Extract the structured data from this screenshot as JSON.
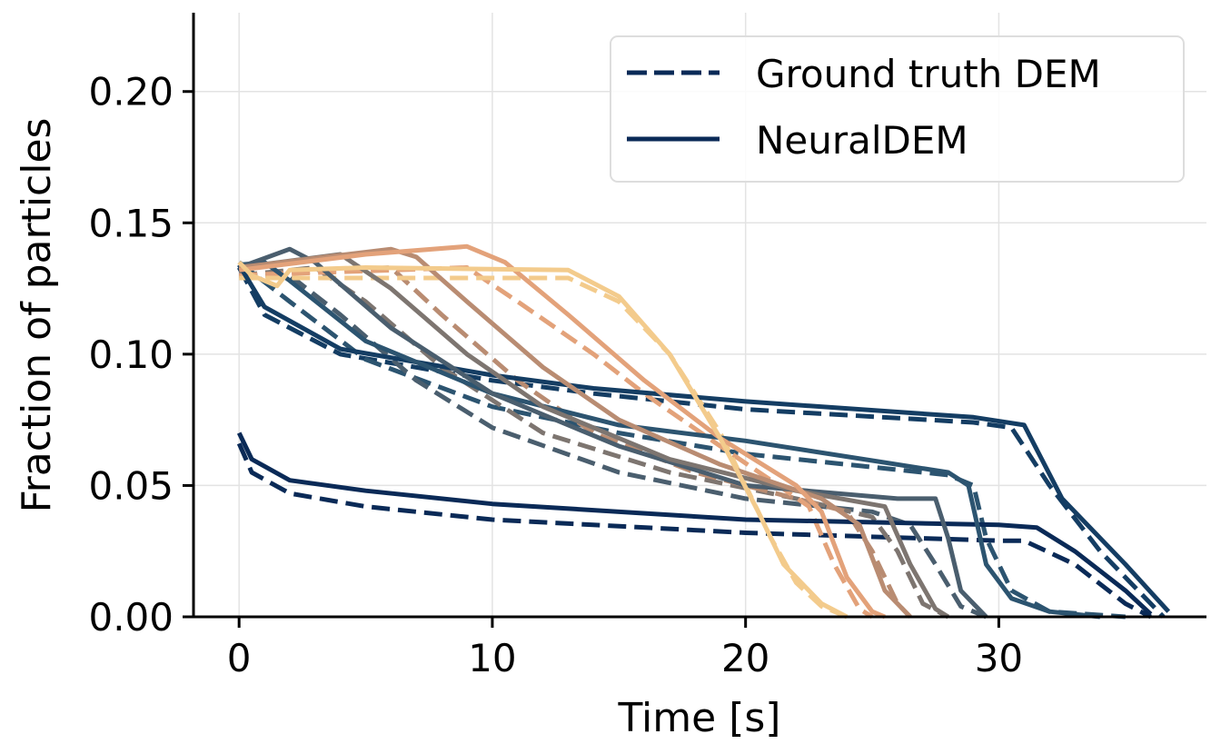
{
  "chart_data": {
    "type": "line",
    "title": "",
    "xlabel": "Time [s]",
    "ylabel": "Fraction of particles",
    "xlim": [
      -1.8,
      38.2
    ],
    "ylim": [
      0,
      0.23
    ],
    "xticks": [
      0,
      10,
      20,
      30
    ],
    "xtick_labels": [
      "0",
      "10",
      "20",
      "30"
    ],
    "yticks": [
      0,
      0.05,
      0.1,
      0.15,
      0.2
    ],
    "ytick_labels": [
      "0.00",
      "0.05",
      "0.10",
      "0.15",
      "0.20"
    ],
    "grid": true,
    "legend_placement": "top-right",
    "legend": [
      {
        "label": "Ground truth DEM",
        "style": "dashed",
        "color": "#0a2a57"
      },
      {
        "label": "NeuralDEM",
        "style": "solid",
        "color": "#0a2a57"
      }
    ],
    "series": [
      {
        "color": "#0a2a57",
        "ground_truth": [
          [
            0,
            0.066
          ],
          [
            0.5,
            0.055
          ],
          [
            2,
            0.047
          ],
          [
            5,
            0.042
          ],
          [
            10,
            0.037
          ],
          [
            20,
            0.032
          ],
          [
            30,
            0.029
          ],
          [
            31,
            0.029
          ],
          [
            33,
            0.02
          ],
          [
            35,
            0.005
          ],
          [
            36,
            0
          ]
        ],
        "neural": [
          [
            0,
            0.07
          ],
          [
            0.5,
            0.06
          ],
          [
            2,
            0.052
          ],
          [
            5,
            0.048
          ],
          [
            10,
            0.043
          ],
          [
            20,
            0.037
          ],
          [
            30,
            0.035
          ],
          [
            31.5,
            0.034
          ],
          [
            33,
            0.025
          ],
          [
            35,
            0.01
          ],
          [
            36,
            0.001
          ]
        ]
      },
      {
        "color": "#143d63",
        "ground_truth": [
          [
            0,
            0.133
          ],
          [
            1,
            0.115
          ],
          [
            4,
            0.1
          ],
          [
            10,
            0.09
          ],
          [
            14,
            0.085
          ],
          [
            20,
            0.079
          ],
          [
            29,
            0.074
          ],
          [
            30.5,
            0.072
          ],
          [
            32,
            0.05
          ],
          [
            34,
            0.025
          ],
          [
            36,
            0.005
          ],
          [
            36.5,
            0
          ]
        ],
        "neural": [
          [
            0,
            0.134
          ],
          [
            1,
            0.118
          ],
          [
            4,
            0.102
          ],
          [
            10,
            0.092
          ],
          [
            14,
            0.087
          ],
          [
            20,
            0.082
          ],
          [
            29,
            0.076
          ],
          [
            31,
            0.073
          ],
          [
            32.5,
            0.045
          ],
          [
            35,
            0.02
          ],
          [
            36.7,
            0.002
          ]
        ]
      },
      {
        "color": "#2c5470",
        "ground_truth": [
          [
            0,
            0.135
          ],
          [
            2,
            0.12
          ],
          [
            5,
            0.098
          ],
          [
            10,
            0.08
          ],
          [
            15,
            0.07
          ],
          [
            20,
            0.062
          ],
          [
            28,
            0.054
          ],
          [
            29,
            0.05
          ],
          [
            29.5,
            0.03
          ],
          [
            30.5,
            0.01
          ],
          [
            32,
            0.002
          ],
          [
            35,
            0
          ]
        ],
        "neural": [
          [
            0,
            0.134
          ],
          [
            1,
            0.135
          ],
          [
            2,
            0.128
          ],
          [
            5,
            0.105
          ],
          [
            10,
            0.085
          ],
          [
            15,
            0.073
          ],
          [
            20,
            0.067
          ],
          [
            28,
            0.055
          ],
          [
            28.8,
            0.05
          ],
          [
            29.5,
            0.02
          ],
          [
            30.5,
            0.007
          ],
          [
            32,
            0.002
          ],
          [
            34,
            0
          ]
        ]
      },
      {
        "color": "#4a5e6e",
        "ground_truth": [
          [
            0,
            0.13
          ],
          [
            2,
            0.13
          ],
          [
            4,
            0.115
          ],
          [
            7,
            0.09
          ],
          [
            10,
            0.072
          ],
          [
            15,
            0.055
          ],
          [
            20,
            0.045
          ],
          [
            25,
            0.04
          ],
          [
            26.5,
            0.035
          ],
          [
            27.5,
            0.02
          ],
          [
            28.5,
            0.004
          ],
          [
            29.5,
            0
          ]
        ],
        "neural": [
          [
            0,
            0.133
          ],
          [
            2,
            0.14
          ],
          [
            3,
            0.135
          ],
          [
            6,
            0.11
          ],
          [
            10,
            0.085
          ],
          [
            15,
            0.065
          ],
          [
            20,
            0.05
          ],
          [
            26,
            0.045
          ],
          [
            27.5,
            0.045
          ],
          [
            28,
            0.03
          ],
          [
            28.5,
            0.01
          ],
          [
            29.5,
            0
          ]
        ]
      },
      {
        "color": "#7d7570",
        "ground_truth": [
          [
            0,
            0.13
          ],
          [
            3,
            0.133
          ],
          [
            5,
            0.12
          ],
          [
            8,
            0.095
          ],
          [
            12,
            0.07
          ],
          [
            17,
            0.055
          ],
          [
            22,
            0.045
          ],
          [
            25,
            0.038
          ],
          [
            26,
            0.025
          ],
          [
            27,
            0.005
          ],
          [
            28,
            0
          ]
        ],
        "neural": [
          [
            0,
            0.133
          ],
          [
            4,
            0.138
          ],
          [
            6,
            0.125
          ],
          [
            9,
            0.1
          ],
          [
            12,
            0.08
          ],
          [
            17,
            0.06
          ],
          [
            22,
            0.048
          ],
          [
            25.5,
            0.042
          ],
          [
            26.5,
            0.02
          ],
          [
            27.5,
            0.003
          ],
          [
            28,
            0
          ]
        ]
      },
      {
        "color": "#b98c72",
        "ground_truth": [
          [
            0,
            0.13
          ],
          [
            6,
            0.133
          ],
          [
            8,
            0.115
          ],
          [
            11,
            0.09
          ],
          [
            14,
            0.07
          ],
          [
            18,
            0.055
          ],
          [
            22,
            0.045
          ],
          [
            24,
            0.04
          ],
          [
            25,
            0.025
          ],
          [
            26,
            0.005
          ],
          [
            26.5,
            0
          ]
        ],
        "neural": [
          [
            0,
            0.133
          ],
          [
            6,
            0.14
          ],
          [
            7,
            0.137
          ],
          [
            9,
            0.12
          ],
          [
            12,
            0.095
          ],
          [
            15,
            0.075
          ],
          [
            19,
            0.058
          ],
          [
            23,
            0.045
          ],
          [
            24.5,
            0.035
          ],
          [
            25.5,
            0.01
          ],
          [
            26.5,
            0
          ]
        ]
      },
      {
        "color": "#e3a27a",
        "ground_truth": [
          [
            0,
            0.13
          ],
          [
            9,
            0.133
          ],
          [
            11,
            0.12
          ],
          [
            14,
            0.1
          ],
          [
            16,
            0.085
          ],
          [
            19,
            0.065
          ],
          [
            21,
            0.052
          ],
          [
            22.5,
            0.042
          ],
          [
            23.5,
            0.02
          ],
          [
            24.5,
            0.003
          ],
          [
            25,
            0
          ]
        ],
        "neural": [
          [
            0,
            0.132
          ],
          [
            5,
            0.138
          ],
          [
            9,
            0.141
          ],
          [
            10.5,
            0.135
          ],
          [
            13,
            0.115
          ],
          [
            16,
            0.09
          ],
          [
            19,
            0.068
          ],
          [
            22,
            0.05
          ],
          [
            23,
            0.04
          ],
          [
            24,
            0.015
          ],
          [
            25,
            0.002
          ],
          [
            25.5,
            0
          ]
        ]
      },
      {
        "color": "#f3cb8c",
        "ground_truth": [
          [
            0,
            0.129
          ],
          [
            13,
            0.129
          ],
          [
            15,
            0.12
          ],
          [
            17,
            0.1
          ],
          [
            19,
            0.07
          ],
          [
            20,
            0.05
          ],
          [
            21,
            0.03
          ],
          [
            22,
            0.013
          ],
          [
            23,
            0.004
          ],
          [
            24,
            0
          ]
        ],
        "neural": [
          [
            0,
            0.135
          ],
          [
            0.5,
            0.13
          ],
          [
            1,
            0.128
          ],
          [
            1.5,
            0.126
          ],
          [
            2,
            0.132
          ],
          [
            5,
            0.133
          ],
          [
            13,
            0.132
          ],
          [
            15,
            0.122
          ],
          [
            17,
            0.1
          ],
          [
            19,
            0.068
          ],
          [
            20.5,
            0.04
          ],
          [
            21.5,
            0.02
          ],
          [
            23,
            0.005
          ],
          [
            24,
            0
          ]
        ]
      }
    ]
  }
}
